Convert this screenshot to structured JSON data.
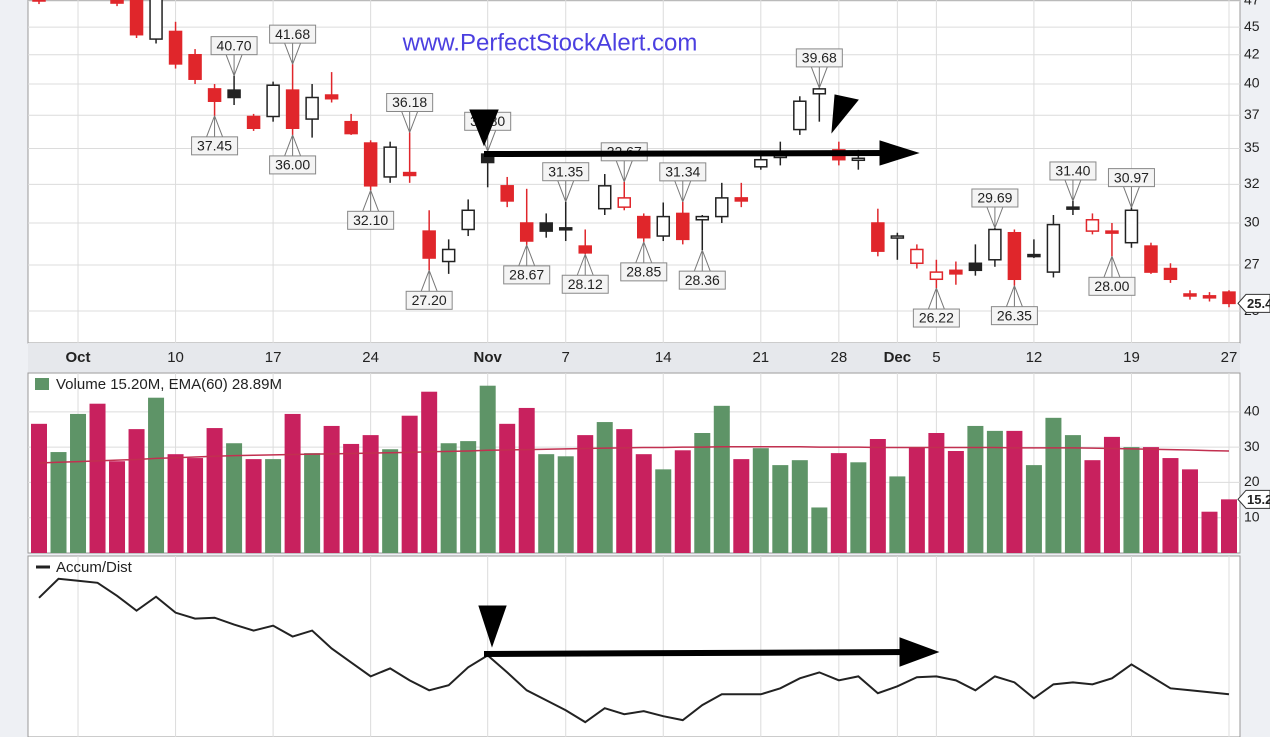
{
  "chart_data": [
    {
      "type": "candlestick",
      "watermark": "www.PerfectStockAlert.com",
      "categories": [
        null,
        null,
        "Oct",
        null,
        null,
        null,
        null,
        "10",
        null,
        null,
        null,
        null,
        "17",
        null,
        null,
        null,
        null,
        "24",
        null,
        null,
        null,
        null,
        null,
        "Nov",
        null,
        null,
        null,
        "7",
        null,
        null,
        null,
        null,
        "14",
        null,
        null,
        null,
        null,
        "21",
        null,
        null,
        null,
        "28",
        null,
        null,
        "Dec",
        null,
        "5",
        null,
        null,
        null,
        null,
        "12",
        null,
        null,
        null,
        null,
        "19",
        null,
        null,
        null,
        null,
        "27"
      ],
      "open": [
        48.0,
        null,
        null,
        null,
        47.6,
        47.8,
        43.9,
        44.6,
        42.5,
        39.6,
        39.5,
        37.4,
        37.4,
        39.5,
        37.2,
        39.1,
        37.0,
        35.4,
        33.0,
        33.3,
        29.5,
        27.7,
        29.6,
        34.6,
        32.4,
        30.0,
        30.0,
        29.7,
        28.6,
        30.9,
        31.0,
        30.4,
        29.2,
        30.6,
        30.2,
        30.4,
        31.6,
        33.7,
        34.4,
        36.4,
        39.2,
        34.9,
        34.2,
        30.0,
        29.1,
        27.6,
        26.7,
        27.2,
        27.6,
        27.8,
        29.4,
        28.1,
        27.1,
        31.0,
        29.5,
        29.5,
        28.8,
        28.6,
        27.3,
        25.9,
        25.8,
        26.0
      ],
      "high": [
        48.2,
        null,
        null,
        null,
        48.0,
        48.0,
        48.2,
        45.5,
        43.0,
        40.0,
        40.7,
        37.6,
        40.2,
        41.68,
        40.0,
        41.0,
        37.6,
        35.6,
        35.5,
        36.18,
        30.8,
        29.0,
        31.5,
        34.8,
        33.0,
        32.2,
        30.6,
        31.35,
        29.6,
        33.2,
        32.67,
        30.6,
        31.3,
        31.34,
        30.5,
        32.6,
        32.6,
        34.7,
        35.5,
        39.0,
        39.68,
        35.5,
        34.9,
        30.9,
        29.4,
        28.7,
        27.8,
        27.7,
        28.7,
        29.69,
        29.6,
        29.0,
        30.5,
        31.4,
        30.6,
        30.0,
        30.97,
        28.8,
        27.6,
        26.1,
        26.0,
        26.1
      ],
      "low": [
        47.2,
        null,
        null,
        null,
        47.0,
        44.0,
        43.5,
        41.3,
        40.0,
        37.45,
        38.3,
        36.3,
        37.0,
        36.0,
        35.8,
        38.5,
        36.0,
        32.1,
        32.6,
        32.6,
        27.2,
        27.0,
        29.2,
        32.3,
        31.0,
        28.67,
        29.1,
        28.9,
        28.12,
        30.5,
        30.8,
        28.85,
        28.9,
        28.7,
        28.36,
        30.0,
        31.0,
        33.5,
        33.8,
        36.0,
        37.0,
        33.8,
        33.5,
        28.0,
        27.8,
        27.3,
        26.22,
        26.4,
        26.9,
        27.4,
        26.35,
        27.9,
        26.8,
        30.5,
        29.3,
        28.0,
        28.5,
        27.0,
        26.5,
        25.6,
        25.5,
        25.2
      ],
      "close": [
        47.5,
        null,
        null,
        null,
        47.3,
        44.3,
        47.9,
        41.7,
        40.4,
        38.6,
        38.9,
        36.5,
        39.9,
        36.5,
        38.9,
        38.8,
        36.1,
        32.4,
        35.1,
        33.1,
        27.9,
        28.4,
        30.8,
        34.0,
        31.4,
        28.9,
        29.5,
        29.6,
        28.2,
        32.4,
        31.6,
        29.1,
        30.4,
        29.0,
        30.4,
        31.6,
        31.4,
        34.2,
        34.5,
        38.6,
        39.6,
        34.2,
        34.3,
        28.3,
        29.2,
        28.4,
        27.1,
        27.0,
        27.2,
        29.6,
        26.7,
        28.0,
        29.9,
        30.9,
        30.2,
        29.4,
        30.8,
        27.1,
        26.7,
        25.8,
        25.7,
        25.4
      ],
      "up_color": "#222222",
      "down_color": "#e0262b",
      "log": true,
      "ylim": [
        23.4,
        47.6
      ],
      "yticks": [
        {
          "value": 47.5,
          "label": "47"
        },
        45,
        {
          "value": 42.5,
          "label": "42"
        },
        40,
        {
          "value": 37.5,
          "label": "37"
        },
        35,
        {
          "value": 32.5,
          "label": "32"
        },
        30,
        {
          "value": 27.5,
          "label": "27"
        },
        25
      ],
      "grid": true,
      "annotations": [
        {
          "at": 9,
          "value": 37.45,
          "label": "37.45"
        },
        {
          "at": 10,
          "value": 40.7,
          "label": "40.70"
        },
        {
          "at": 13,
          "value": 41.68,
          "label": "41.68"
        },
        {
          "at": 13,
          "value": 36.0,
          "label": "36.00"
        },
        {
          "at": 17,
          "value": 32.1,
          "label": "32.10"
        },
        {
          "at": 19,
          "value": 36.18,
          "label": "36.18"
        },
        {
          "at": 20,
          "value": 27.2,
          "label": "27.20"
        },
        {
          "at": 23,
          "value": 34.8,
          "label": "34.80"
        },
        {
          "at": 25,
          "value": 28.67,
          "label": "28.67"
        },
        {
          "at": 27,
          "value": 31.35,
          "label": "31.35"
        },
        {
          "at": 28,
          "value": 28.12,
          "label": "28.12"
        },
        {
          "at": 30,
          "value": 32.67,
          "label": "32.67"
        },
        {
          "at": 31,
          "value": 28.85,
          "label": "28.85"
        },
        {
          "at": 33,
          "value": 31.34,
          "label": "31.34"
        },
        {
          "at": 34,
          "value": 28.36,
          "label": "28.36"
        },
        {
          "at": 40,
          "value": 39.68,
          "label": "39.68"
        },
        {
          "at": 46,
          "value": 26.22,
          "label": "26.22"
        },
        {
          "at": 49,
          "value": 29.69,
          "label": "29.69"
        },
        {
          "at": 50,
          "value": 26.35,
          "label": "26.35"
        },
        {
          "at": 53,
          "value": 31.4,
          "label": "31.40"
        },
        {
          "at": 55,
          "value": 28.0,
          "label": "28.00"
        },
        {
          "at": 56,
          "value": 30.97,
          "label": "30.97"
        }
      ],
      "last_label": {
        "value": 25.4,
        "label": "25.4"
      }
    },
    {
      "type": "bar",
      "title": "Volume 15.20M, EMA(60) 28.89M",
      "values": [
        36.6,
        28.6,
        39.4,
        42.3,
        26,
        35.1,
        44,
        28,
        26.9,
        35.4,
        31.1,
        26.6,
        26.6,
        39.4,
        28.3,
        36,
        30.9,
        33.4,
        29.4,
        38.9,
        45.7,
        31.1,
        31.7,
        47.4,
        36.6,
        41.1,
        28,
        27.4,
        33.4,
        37.1,
        35.1,
        28,
        23.7,
        29.1,
        34,
        41.7,
        26.6,
        29.7,
        24.9,
        26.3,
        12.9,
        28.3,
        25.7,
        32.3,
        21.7,
        30,
        34,
        28.9,
        36,
        34.6,
        34.6,
        24.9,
        38.3,
        33.4,
        26.3,
        32.9,
        30,
        30,
        26.9,
        23.7,
        11.7,
        15.2
      ],
      "colors": [
        "#c8215e",
        "#5e9467",
        "#5e9467",
        "#c8215e",
        "#c8215e",
        "#c8215e",
        "#5e9467",
        "#c8215e",
        "#c8215e",
        "#c8215e",
        "#5e9467",
        "#c8215e",
        "#5e9467",
        "#c8215e",
        "#5e9467",
        "#c8215e",
        "#c8215e",
        "#c8215e",
        "#5e9467",
        "#c8215e",
        "#c8215e",
        "#5e9467",
        "#5e9467",
        "#5e9467",
        "#c8215e",
        "#c8215e",
        "#5e9467",
        "#5e9467",
        "#c8215e",
        "#5e9467",
        "#c8215e",
        "#c8215e",
        "#5e9467",
        "#c8215e",
        "#5e9467",
        "#5e9467",
        "#c8215e",
        "#5e9467",
        "#5e9467",
        "#5e9467",
        "#5e9467",
        "#c8215e",
        "#5e9467",
        "#c8215e",
        "#5e9467",
        "#c8215e",
        "#c8215e",
        "#c8215e",
        "#5e9467",
        "#5e9467",
        "#c8215e",
        "#5e9467",
        "#5e9467",
        "#5e9467",
        "#c8215e",
        "#c8215e",
        "#5e9467",
        "#c8215e",
        "#c8215e",
        "#c8215e",
        "#c8215e",
        "#c8215e"
      ],
      "line_values": [
        25.5,
        25.7,
        25.9,
        26.1,
        26.3,
        26.5,
        26.8,
        27.0,
        27.2,
        27.4,
        27.6,
        27.7,
        27.8,
        27.9,
        28.0,
        28.1,
        28.2,
        28.3,
        28.4,
        28.5,
        28.7,
        28.8,
        28.9,
        29.1,
        29.2,
        29.3,
        29.4,
        29.5,
        29.6,
        29.7,
        29.8,
        29.9,
        29.9,
        30.0,
        30.0,
        30.1,
        30.1,
        30.1,
        30.1,
        30.1,
        30.0,
        30.0,
        30.0,
        29.9,
        29.9,
        29.9,
        29.9,
        29.9,
        29.9,
        29.9,
        29.8,
        29.8,
        29.8,
        29.8,
        29.7,
        29.6,
        29.5,
        29.4,
        29.3,
        29.2,
        29.0,
        28.89
      ],
      "line_color": "#c23050",
      "ylim": [
        0,
        51
      ],
      "yticks": [
        10,
        20,
        30,
        40
      ],
      "grid": true,
      "last_label": {
        "value": 15.2,
        "label": "15.2"
      }
    },
    {
      "type": "line",
      "title": "Accum/Dist",
      "values": [
        76.9,
        87.4,
        86.3,
        85.2,
        78.0,
        69.8,
        77.5,
        68.7,
        65.4,
        65.9,
        62.1,
        58.8,
        61.5,
        55.5,
        58.8,
        48.9,
        41.2,
        33.5,
        37.9,
        31.3,
        25.8,
        28.6,
        38.5,
        45.1,
        35.7,
        25.8,
        20.3,
        14.8,
        8.2,
        15.9,
        12.6,
        14.3,
        11.5,
        9.3,
        17.6,
        23.6,
        23.6,
        23.6,
        26.9,
        32.4,
        35.7,
        31.3,
        33.5,
        24.2,
        28.0,
        33.0,
        33.5,
        31.3,
        25.8,
        33.5,
        30.2,
        21.4,
        29.1,
        30.2,
        29.1,
        32.4,
        40.1,
        33.5,
        26.9,
        25.8,
        24.7,
        23.6
      ],
      "color": "#222222",
      "ylim": [
        0,
        100
      ],
      "grid": true
    }
  ]
}
